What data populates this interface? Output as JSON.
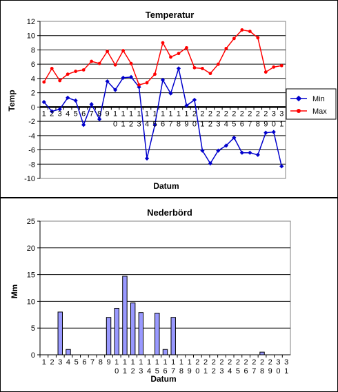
{
  "chart_data": [
    {
      "type": "line",
      "title": "Temperatur",
      "xlabel": "Datum",
      "ylabel": "Temp",
      "ylim": [
        -10,
        12
      ],
      "yticks": [
        -10,
        -8,
        -6,
        -4,
        -2,
        0,
        2,
        4,
        6,
        8,
        10,
        12
      ],
      "grid": true,
      "legend_position": "right",
      "categories": [
        1,
        2,
        3,
        4,
        5,
        6,
        7,
        8,
        9,
        10,
        11,
        12,
        13,
        14,
        15,
        16,
        17,
        18,
        19,
        20,
        21,
        22,
        23,
        24,
        25,
        26,
        27,
        28,
        29,
        30,
        31
      ],
      "category_labels": [
        [
          "1"
        ],
        [
          "2"
        ],
        [
          "3"
        ],
        [
          "4"
        ],
        [
          "5"
        ],
        [
          "6"
        ],
        [
          "7"
        ],
        [
          "8"
        ],
        [
          "9"
        ],
        [
          "1",
          "0"
        ],
        [
          "1",
          "1"
        ],
        [
          "1",
          "2"
        ],
        [
          "1",
          "3"
        ],
        [
          "1",
          "4"
        ],
        [
          "1",
          "5"
        ],
        [
          "1",
          "6"
        ],
        [
          "1",
          "7"
        ],
        [
          "1",
          "8"
        ],
        [
          "1",
          "9"
        ],
        [
          "2",
          "0"
        ],
        [
          "2",
          "1"
        ],
        [
          "2",
          "2"
        ],
        [
          "2",
          "3"
        ],
        [
          "2",
          "4"
        ],
        [
          "2",
          "5"
        ],
        [
          "2",
          "6"
        ],
        [
          "2",
          "7"
        ],
        [
          "2",
          "8"
        ],
        [
          "2",
          "9"
        ],
        [
          "3",
          "0"
        ],
        [
          "3",
          "1"
        ]
      ],
      "series": [
        {
          "name": "Min",
          "color": "#0000cc",
          "marker": "diamond",
          "values": [
            0.7,
            -0.6,
            -0.3,
            1.3,
            0.9,
            -2.5,
            0.4,
            -1.7,
            3.6,
            2.4,
            4.1,
            4.2,
            2.8,
            -7.2,
            -2.5,
            3.8,
            1.9,
            5.4,
            0.2,
            1.0,
            -6.1,
            -7.9,
            -6.1,
            -5.4,
            -4.3,
            -6.4,
            -6.4,
            -6.7,
            -3.6,
            -3.5,
            -8.3
          ]
        },
        {
          "name": "Max",
          "color": "#ff0000",
          "marker": "circle",
          "values": [
            3.5,
            5.4,
            3.7,
            4.6,
            5.0,
            5.2,
            6.4,
            6.1,
            7.8,
            5.9,
            7.9,
            6.1,
            3.1,
            3.4,
            4.6,
            9.0,
            7.0,
            7.5,
            8.3,
            5.5,
            5.4,
            4.7,
            6.0,
            8.2,
            9.6,
            10.8,
            10.6,
            9.7,
            4.9,
            5.6,
            5.8
          ]
        }
      ]
    },
    {
      "type": "bar",
      "title": "Nederbörd",
      "xlabel": "Datum",
      "ylabel": "Mm",
      "ylim": [
        0,
        25
      ],
      "yticks": [
        0,
        5,
        10,
        15,
        20,
        25
      ],
      "grid": true,
      "bar_color": "#9999ff",
      "categories": [
        1,
        2,
        3,
        4,
        5,
        6,
        7,
        8,
        9,
        10,
        11,
        12,
        13,
        14,
        15,
        16,
        17,
        18,
        19,
        20,
        21,
        22,
        23,
        24,
        25,
        26,
        27,
        28,
        29,
        30,
        31
      ],
      "category_labels": [
        [
          "1"
        ],
        [
          "2"
        ],
        [
          "3"
        ],
        [
          "4"
        ],
        [
          "5"
        ],
        [
          "6"
        ],
        [
          "7"
        ],
        [
          "8"
        ],
        [
          "9"
        ],
        [
          "1",
          "0"
        ],
        [
          "1",
          "1"
        ],
        [
          "1",
          "2"
        ],
        [
          "1",
          "3"
        ],
        [
          "1",
          "4"
        ],
        [
          "1",
          "5"
        ],
        [
          "1",
          "6"
        ],
        [
          "1",
          "7"
        ],
        [
          "1",
          "8"
        ],
        [
          "1",
          "9"
        ],
        [
          "2",
          "0"
        ],
        [
          "2",
          "1"
        ],
        [
          "2",
          "2"
        ],
        [
          "2",
          "3"
        ],
        [
          "2",
          "4"
        ],
        [
          "2",
          "5"
        ],
        [
          "2",
          "6"
        ],
        [
          "2",
          "7"
        ],
        [
          "2",
          "8"
        ],
        [
          "2",
          "9"
        ],
        [
          "3",
          "0"
        ],
        [
          "3",
          "1"
        ]
      ],
      "values": [
        0,
        0,
        8.0,
        1.0,
        0,
        0,
        0,
        0,
        7.0,
        8.7,
        14.7,
        9.7,
        7.9,
        0,
        7.8,
        1.0,
        7.0,
        0,
        0,
        0,
        0,
        0,
        0,
        0,
        0,
        0,
        0,
        0.5,
        0,
        0,
        0
      ]
    }
  ]
}
